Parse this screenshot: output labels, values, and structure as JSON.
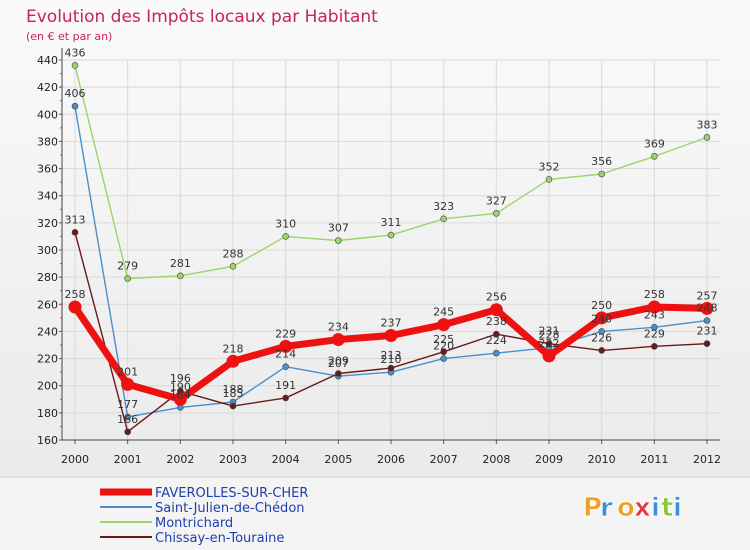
{
  "chart_data": {
    "type": "line",
    "title": "Evolution des Impôts locaux par Habitant",
    "subtitle": "(en € et par an)",
    "categories": [
      "2000",
      "2001",
      "2002",
      "2003",
      "2004",
      "2005",
      "2006",
      "2007",
      "2008",
      "2009",
      "2010",
      "2011",
      "2012"
    ],
    "ylim": [
      160,
      440
    ],
    "yticks": [
      160,
      180,
      200,
      220,
      240,
      260,
      280,
      300,
      320,
      340,
      360,
      380,
      400,
      420,
      440
    ],
    "grid": true,
    "legend_position": "bottom-left",
    "series": [
      {
        "name": "Saint-Julien-de-Chédon",
        "color": "#4a8fcb",
        "values": [
          406,
          177,
          184,
          188,
          214,
          207,
          210,
          220,
          224,
          228,
          240,
          243,
          248
        ]
      },
      {
        "name": "Montrichard",
        "color": "#9ad46a",
        "values": [
          436,
          279,
          281,
          288,
          310,
          307,
          311,
          323,
          327,
          352,
          356,
          369,
          383
        ]
      },
      {
        "name": "Chissay-en-Touraine",
        "color": "#6b1a1a",
        "values": [
          313,
          166,
          196,
          185,
          191,
          209,
          213,
          225,
          238,
          231,
          226,
          229,
          231
        ]
      },
      {
        "name": "FAVEROLLES-SUR-CHER",
        "color": "#ee1111",
        "values": [
          258,
          201,
          190,
          218,
          229,
          234,
          237,
          245,
          256,
          222,
          250,
          258,
          257
        ]
      }
    ]
  },
  "logo": {
    "text": "Proxiti",
    "colors": [
      "#f0a020",
      "#3a8fd8",
      "#f0a020",
      "#e83838",
      "#3a8fd8",
      "#8ac838",
      "#3a8fd8"
    ]
  }
}
